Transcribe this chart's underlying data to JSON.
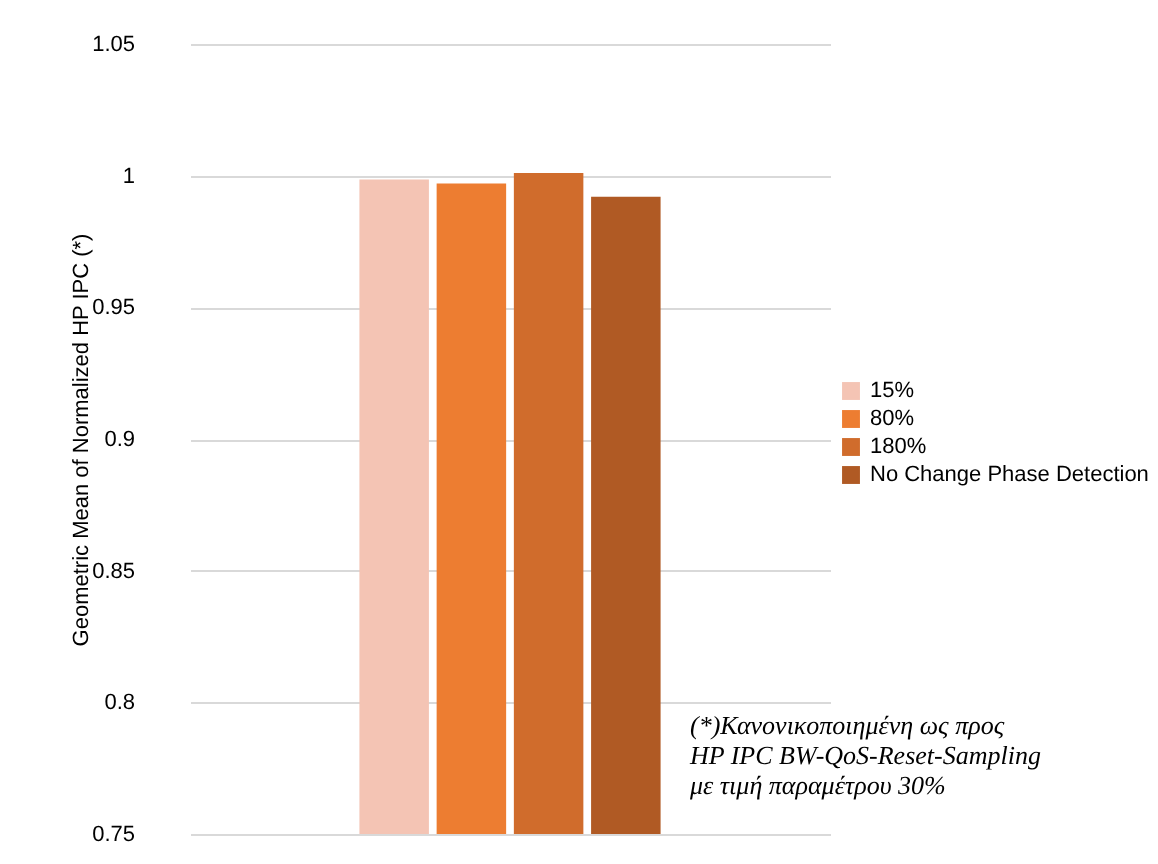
{
  "chart_data": {
    "type": "bar",
    "ylabel": "Geometric Mean of Normalized HP IPC (*)",
    "categories": [
      null
    ],
    "series": [
      {
        "name": "15%",
        "color": "#f4c4b4",
        "values": [
          0.9985
        ]
      },
      {
        "name": "80%",
        "color": "#ed7d31",
        "values": [
          0.997
        ]
      },
      {
        "name": "180%",
        "color": "#d06c2c",
        "values": [
          1.001
        ]
      },
      {
        "name": "No Change Phase Detection",
        "color": "#b05a24",
        "values": [
          0.992
        ]
      }
    ],
    "ylim": [
      0.75,
      1.05
    ],
    "yticks": [
      0.75,
      0.8,
      0.85,
      0.9,
      0.95,
      1,
      1.05
    ],
    "grid": "y",
    "legend": "right",
    "annotations": [
      "(*)Κανονικοποιημένη ως προς\nHP IPC BW-QoS-Reset-Sampling\nμε τιμή παραμέτρου 30%"
    ]
  }
}
